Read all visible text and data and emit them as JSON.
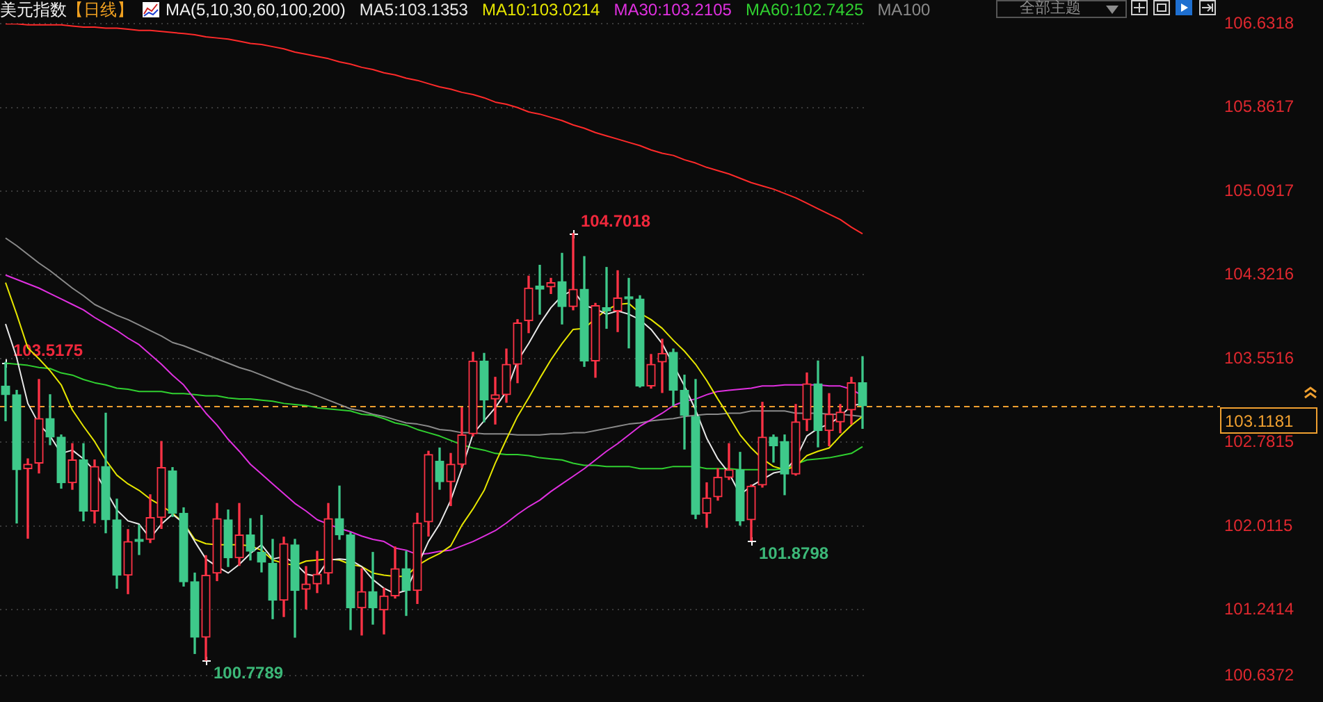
{
  "chart_data": {
    "type": "candlestick",
    "title": "美元指数",
    "subtitle": "【日线】",
    "legend_title": "MA(5,10,30,60,100,200)",
    "legend": "top right",
    "tick_labels": "y",
    "grid": "y",
    "categories": [
      null,
      null,
      null,
      null,
      null,
      null,
      null,
      null,
      null,
      null,
      null,
      null,
      null,
      null,
      null,
      null,
      null,
      null,
      null,
      null,
      null,
      null,
      null,
      null,
      null,
      null,
      null,
      null,
      null,
      null,
      null,
      null,
      null,
      null,
      null,
      null,
      null,
      null,
      null,
      null,
      null,
      null,
      null,
      null,
      null,
      null,
      null,
      null,
      null,
      null,
      null,
      null,
      null,
      null,
      null,
      null,
      null,
      null,
      null,
      null,
      null,
      null,
      null,
      null,
      null,
      null,
      null,
      null,
      null,
      null,
      null,
      null,
      null,
      null,
      null,
      null,
      null,
      null
    ],
    "ohlc": [
      [
        103.3,
        103.5175,
        102.98,
        103.22
      ],
      [
        103.22,
        103.26,
        102.04,
        102.53
      ],
      [
        102.54,
        102.63,
        101.9,
        102.58
      ],
      [
        102.59,
        103.36,
        102.5,
        103.0
      ],
      [
        103.0,
        103.22,
        102.76,
        102.83
      ],
      [
        102.83,
        102.85,
        102.36,
        102.41
      ],
      [
        102.41,
        102.77,
        102.35,
        102.62
      ],
      [
        102.62,
        102.77,
        102.06,
        102.15
      ],
      [
        102.15,
        102.62,
        102.04,
        102.56
      ],
      [
        102.56,
        103.05,
        101.95,
        102.07
      ],
      [
        102.07,
        102.26,
        101.44,
        101.56
      ],
      [
        101.56,
        101.98,
        101.39,
        101.87
      ],
      [
        101.89,
        102.02,
        101.75,
        101.87
      ],
      [
        101.89,
        102.3,
        101.86,
        102.09
      ],
      [
        102.09,
        102.79,
        101.99,
        102.55
      ],
      [
        102.52,
        102.55,
        102.1,
        102.13
      ],
      [
        102.13,
        102.18,
        101.46,
        101.5
      ],
      [
        101.5,
        101.58,
        100.84,
        100.99
      ],
      [
        100.99,
        101.74,
        100.7789,
        101.56
      ],
      [
        101.58,
        102.22,
        101.51,
        102.08
      ],
      [
        102.07,
        102.16,
        101.64,
        101.72
      ],
      [
        101.72,
        102.22,
        101.65,
        101.93
      ],
      [
        101.93,
        102.08,
        101.7,
        101.78
      ],
      [
        101.77,
        102.11,
        101.59,
        101.68
      ],
      [
        101.67,
        101.89,
        101.16,
        101.33
      ],
      [
        101.33,
        101.91,
        101.18,
        101.85
      ],
      [
        101.84,
        101.89,
        100.99,
        101.42
      ],
      [
        101.43,
        101.64,
        101.25,
        101.48
      ],
      [
        101.48,
        101.78,
        101.4,
        101.57
      ],
      [
        101.58,
        102.22,
        101.48,
        102.08
      ],
      [
        102.08,
        102.38,
        101.89,
        101.93
      ],
      [
        101.93,
        101.95,
        101.06,
        101.26
      ],
      [
        101.26,
        101.62,
        101.01,
        101.41
      ],
      [
        101.41,
        101.77,
        101.11,
        101.26
      ],
      [
        101.24,
        101.44,
        101.02,
        101.37
      ],
      [
        101.37,
        101.82,
        101.35,
        101.62
      ],
      [
        101.62,
        101.78,
        101.19,
        101.42
      ],
      [
        101.42,
        102.13,
        101.3,
        102.04
      ],
      [
        102.05,
        102.7,
        101.92,
        102.67
      ],
      [
        102.61,
        102.73,
        102.35,
        102.42
      ],
      [
        102.42,
        102.68,
        102.2,
        102.58
      ],
      [
        102.58,
        103.1,
        102.55,
        102.85
      ],
      [
        102.86,
        103.61,
        102.84,
        103.53
      ],
      [
        103.53,
        103.6,
        102.97,
        103.17
      ],
      [
        103.18,
        103.38,
        102.95,
        103.22
      ],
      [
        103.22,
        103.64,
        103.15,
        103.5
      ],
      [
        103.5,
        103.91,
        103.33,
        103.88
      ],
      [
        103.9,
        104.31,
        103.79,
        104.2
      ],
      [
        104.22,
        104.41,
        103.96,
        104.19
      ],
      [
        104.21,
        104.29,
        104.15,
        104.25
      ],
      [
        104.26,
        104.52,
        103.87,
        104.03
      ],
      [
        104.03,
        104.7018,
        104.0,
        104.19
      ],
      [
        104.19,
        104.49,
        103.48,
        103.53
      ],
      [
        103.53,
        104.06,
        103.38,
        104.04
      ],
      [
        104.02,
        104.39,
        103.83,
        103.99
      ],
      [
        103.99,
        104.36,
        103.8,
        104.11
      ],
      [
        104.12,
        104.29,
        103.65,
        104.1
      ],
      [
        104.1,
        104.13,
        103.29,
        103.3
      ],
      [
        103.3,
        103.59,
        103.28,
        103.5
      ],
      [
        103.52,
        103.73,
        103.24,
        103.6
      ],
      [
        103.61,
        103.64,
        103.12,
        103.26
      ],
      [
        103.26,
        103.4,
        102.72,
        103.03
      ],
      [
        103.02,
        103.36,
        102.08,
        102.12
      ],
      [
        102.13,
        102.41,
        102.0,
        102.27
      ],
      [
        102.28,
        102.54,
        102.25,
        102.46
      ],
      [
        102.46,
        102.77,
        102.44,
        102.53
      ],
      [
        102.53,
        102.69,
        102.02,
        102.06
      ],
      [
        102.07,
        102.39,
        101.8798,
        102.38
      ],
      [
        102.39,
        103.15,
        102.37,
        102.83
      ],
      [
        102.83,
        102.85,
        102.6,
        102.75
      ],
      [
        102.79,
        102.85,
        102.3,
        102.49
      ],
      [
        102.49,
        103.13,
        102.48,
        102.97
      ],
      [
        102.99,
        103.42,
        102.89,
        103.32
      ],
      [
        103.32,
        103.53,
        102.74,
        102.89
      ],
      [
        102.89,
        103.23,
        102.75,
        103.04
      ],
      [
        102.97,
        103.13,
        102.87,
        103.06
      ],
      [
        103.08,
        103.38,
        102.95,
        103.33
      ],
      [
        103.33,
        103.57,
        102.91,
        103.1181
      ]
    ],
    "value_labels": [
      "103.5175",
      null,
      null,
      null,
      null,
      null,
      null,
      null,
      null,
      null,
      null,
      null,
      null,
      null,
      null,
      null,
      null,
      null,
      "100.7789",
      null,
      null,
      null,
      null,
      null,
      null,
      null,
      null,
      null,
      null,
      null,
      null,
      null,
      null,
      null,
      null,
      null,
      null,
      null,
      null,
      null,
      null,
      null,
      null,
      null,
      null,
      null,
      null,
      null,
      null,
      null,
      null,
      "104.7018",
      null,
      null,
      null,
      null,
      null,
      null,
      null,
      null,
      null,
      null,
      null,
      null,
      null,
      null,
      null,
      "101.8798",
      null,
      null,
      null,
      null,
      null,
      null,
      null,
      null,
      null,
      null
    ],
    "colors": [
      "#3ec98a",
      "#3ec98a",
      "#ff3346",
      "#ff3346",
      "#3ec98a",
      "#3ec98a",
      "#ff3346",
      "#3ec98a",
      "#ff3346",
      "#3ec98a",
      "#3ec98a",
      "#ff3346",
      "#3ec98a",
      "#ff3346",
      "#ff3346",
      "#3ec98a",
      "#3ec98a",
      "#3ec98a",
      "#ff3346",
      "#ff3346",
      "#3ec98a",
      "#ff3346",
      "#3ec98a",
      "#3ec98a",
      "#3ec98a",
      "#ff3346",
      "#3ec98a",
      "#ff3346",
      "#ff3346",
      "#ff3346",
      "#3ec98a",
      "#3ec98a",
      "#ff3346",
      "#3ec98a",
      "#ff3346",
      "#ff3346",
      "#3ec98a",
      "#ff3346",
      "#ff3346",
      "#3ec98a",
      "#ff3346",
      "#ff3346",
      "#ff3346",
      "#3ec98a",
      "#ff3346",
      "#ff3346",
      "#ff3346",
      "#ff3346",
      "#3ec98a",
      "#ff3346",
      "#3ec98a",
      "#ff3346",
      "#3ec98a",
      "#ff3346",
      "#3ec98a",
      "#ff3346",
      "#3ec98a",
      "#3ec98a",
      "#ff3346",
      "#ff3346",
      "#3ec98a",
      "#3ec98a",
      "#3ec98a",
      "#ff3346",
      "#ff3346",
      "#ff3346",
      "#3ec98a",
      "#ff3346",
      "#ff3346",
      "#3ec98a",
      "#3ec98a",
      "#ff3346",
      "#ff3346",
      "#3ec98a",
      "#ff3346",
      "#ff3346",
      "#ff3346",
      "#3ec98a"
    ],
    "series": [
      {
        "type": "line",
        "name": "MA5:103.1353",
        "color": "#e8e8e8",
        "values": [
          103.87,
          103.56,
          103.14,
          102.95,
          102.84,
          102.68,
          102.71,
          102.63,
          102.52,
          null,
          102.16,
          102.06,
          102.03,
          101.9,
          102.03,
          102.12,
          102.04,
          101.87,
          101.71,
          101.64,
          101.58,
          101.66,
          101.76,
          101.84,
          101.71,
          101.73,
          101.67,
          101.57,
          101.55,
          101.7,
          101.71,
          101.7,
          101.64,
          101.52,
          101.44,
          101.39,
          101.42,
          null,
          101.87,
          102.03,
          102.25,
          102.54,
          102.86,
          102.98,
          103.1,
          103.25,
          103.53,
          103.69,
          103.87,
          104.02,
          104.13,
          104.18,
          104.04,
          104.01,
          103.96,
          103.99,
          103.96,
          103.91,
          103.82,
          103.69,
          null,
          103.3,
          103.08,
          102.82,
          102.63,
          102.5,
          102.3,
          102.38,
          102.44,
          102.5,
          102.52,
          102.63,
          102.84,
          102.91,
          102.95,
          103.02,
          103.12,
          103.1353
        ]
      },
      {
        "type": "line",
        "name": "MA10:103.0214",
        "color": "#e6e600",
        "values": [
          104.25,
          103.96,
          103.65,
          103.55,
          103.44,
          103.31,
          103.08,
          102.93,
          102.79,
          102.62,
          102.48,
          102.4,
          102.34,
          102.26,
          102.2,
          102.13,
          102.04,
          101.89,
          101.85,
          101.84,
          101.84,
          101.84,
          101.83,
          101.79,
          101.7,
          101.67,
          101.65,
          101.69,
          101.7,
          101.71,
          101.7,
          101.66,
          101.64,
          101.58,
          101.56,
          101.55,
          101.55,
          101.65,
          101.71,
          101.76,
          101.83,
          102.02,
          102.17,
          102.34,
          102.59,
          102.81,
          103.02,
          103.19,
          103.37,
          103.54,
          103.69,
          103.82,
          103.83,
          103.92,
          104.0,
          104.05,
          104.06,
          103.97,
          103.91,
          103.83,
          103.72,
          103.62,
          103.5,
          103.35,
          103.18,
          103.02,
          102.85,
          102.73,
          102.63,
          102.56,
          102.53,
          102.56,
          102.66,
          102.7,
          102.73,
          102.84,
          102.94,
          103.0214
        ]
      },
      {
        "type": "line",
        "name": "MA30:103.2105",
        "color": "#e030e0",
        "values": [
          104.32,
          104.28,
          104.24,
          104.2,
          104.15,
          104.1,
          104.05,
          104.0,
          103.93,
          103.87,
          103.81,
          103.74,
          103.68,
          103.59,
          103.5,
          103.4,
          103.31,
          103.18,
          103.05,
          102.94,
          102.81,
          102.7,
          102.58,
          102.49,
          102.4,
          102.31,
          102.22,
          102.15,
          102.07,
          102.03,
          101.99,
          101.96,
          101.92,
          101.89,
          101.87,
          101.81,
          101.79,
          101.75,
          101.76,
          101.78,
          101.79,
          101.83,
          101.87,
          101.92,
          101.97,
          102.04,
          102.12,
          102.19,
          102.25,
          102.33,
          102.4,
          102.47,
          102.54,
          102.62,
          102.7,
          102.77,
          102.85,
          102.93,
          102.99,
          103.05,
          103.12,
          103.16,
          103.18,
          103.22,
          103.25,
          103.26,
          103.27,
          103.28,
          103.3,
          103.3,
          103.31,
          103.31,
          103.31,
          103.31,
          103.3,
          103.3,
          103.27,
          103.2105
        ]
      },
      {
        "type": "line",
        "name": "MA60:102.7425",
        "color": "#30d030",
        "values": [
          103.51,
          103.5,
          103.49,
          103.47,
          103.46,
          103.42,
          103.4,
          103.36,
          103.33,
          103.31,
          103.28,
          103.27,
          103.25,
          103.25,
          103.25,
          103.23,
          103.23,
          103.22,
          103.21,
          103.21,
          103.19,
          103.18,
          103.18,
          103.17,
          103.16,
          103.14,
          103.13,
          103.12,
          103.1,
          103.09,
          103.08,
          103.07,
          103.04,
          103.03,
          103.0,
          102.96,
          102.94,
          102.9,
          102.87,
          102.84,
          102.8,
          102.76,
          102.73,
          102.71,
          102.68,
          102.67,
          102.67,
          102.66,
          102.64,
          102.63,
          102.62,
          102.59,
          102.57,
          102.57,
          102.56,
          102.56,
          102.56,
          102.54,
          102.54,
          102.54,
          102.56,
          102.56,
          102.56,
          102.54,
          102.54,
          102.54,
          102.53,
          102.53,
          102.53,
          102.53,
          102.54,
          102.58,
          102.62,
          102.63,
          102.64,
          102.66,
          102.68,
          102.7425
        ]
      },
      {
        "type": "line",
        "name": "MA100",
        "color": "#8a8a8a",
        "values": [
          104.66,
          104.59,
          104.51,
          104.43,
          104.36,
          104.28,
          104.2,
          104.13,
          104.05,
          104.0,
          103.95,
          103.91,
          103.86,
          103.81,
          103.76,
          103.7,
          103.67,
          103.63,
          103.59,
          103.55,
          103.51,
          103.47,
          103.44,
          103.4,
          103.36,
          103.32,
          103.28,
          103.25,
          103.21,
          103.17,
          103.13,
          103.09,
          103.07,
          103.04,
          103.02,
          102.99,
          102.96,
          102.95,
          102.93,
          102.9,
          102.89,
          102.87,
          102.87,
          102.86,
          102.86,
          102.86,
          102.85,
          102.85,
          102.85,
          102.86,
          102.86,
          102.87,
          102.87,
          102.89,
          102.91,
          102.93,
          102.95,
          102.96,
          102.98,
          102.99,
          103.0,
          103.02,
          103.03,
          103.04,
          103.04,
          103.05,
          103.05,
          103.07,
          103.07,
          103.07,
          103.07,
          103.05,
          103.05,
          103.05,
          103.04,
          103.04,
          103.03,
          103.02
        ]
      },
      {
        "type": "line",
        "color": "#ff2a2a",
        "values": [
          106.63,
          106.63,
          106.62,
          106.62,
          106.62,
          106.62,
          106.61,
          106.6,
          106.6,
          106.59,
          106.59,
          106.58,
          106.57,
          106.57,
          106.56,
          106.55,
          106.54,
          106.53,
          106.51,
          106.5,
          106.49,
          106.47,
          106.45,
          106.44,
          106.42,
          106.4,
          106.37,
          106.35,
          106.33,
          106.31,
          106.28,
          106.26,
          106.23,
          106.21,
          106.18,
          106.16,
          106.13,
          106.11,
          106.08,
          106.05,
          106.03,
          106.0,
          105.98,
          105.95,
          105.91,
          105.89,
          105.86,
          105.82,
          105.8,
          105.77,
          105.74,
          105.7,
          105.67,
          105.63,
          105.6,
          105.57,
          105.54,
          105.51,
          105.47,
          105.44,
          105.42,
          105.38,
          105.35,
          105.31,
          105.28,
          105.25,
          105.21,
          105.17,
          105.14,
          105.11,
          105.07,
          105.03,
          104.98,
          104.93,
          104.88,
          104.83,
          104.76,
          104.7
        ]
      }
    ],
    "ylim": [
      100.6372,
      106.6318
    ],
    "yticks": [
      106.6318,
      105.8617,
      105.0917,
      104.3216,
      103.5516,
      102.7815,
      102.0115,
      101.2414,
      100.6372
    ],
    "ref_lines": [
      {
        "axis": "y",
        "value": 103.1181,
        "label": "103.1181",
        "color": "#f0a030",
        "line_style": "dashed"
      }
    ],
    "annotations": [
      "全部主题"
    ]
  }
}
